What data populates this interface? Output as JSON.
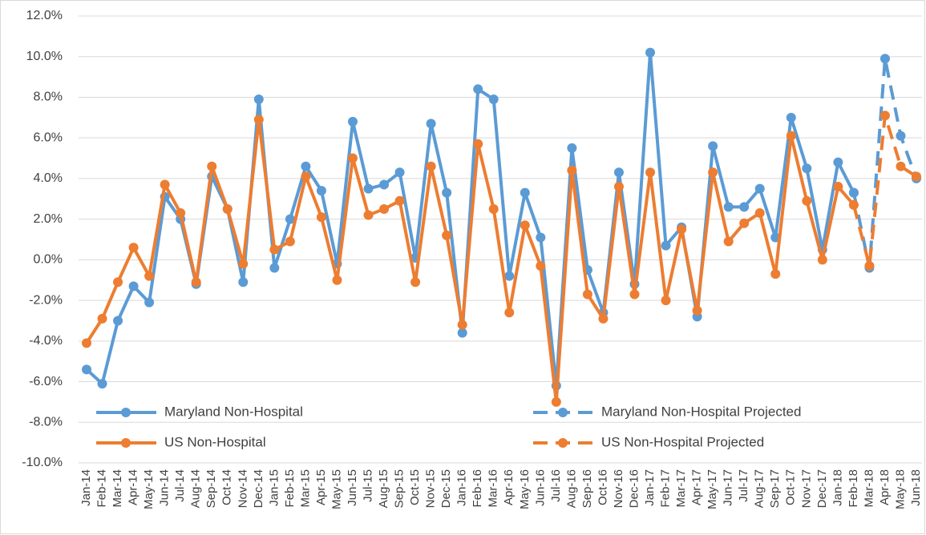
{
  "chart_data": {
    "type": "line",
    "categories": [
      "Jan-14",
      "Feb-14",
      "Mar-14",
      "Apr-14",
      "May-14",
      "Jun-14",
      "Jul-14",
      "Aug-14",
      "Sep-14",
      "Oct-14",
      "Nov-14",
      "Dec-14",
      "Jan-15",
      "Feb-15",
      "Mar-15",
      "Apr-15",
      "May-15",
      "Jun-15",
      "Jul-15",
      "Aug-15",
      "Sep-15",
      "Oct-15",
      "Nov-15",
      "Dec-15",
      "Jan-16",
      "Feb-16",
      "Mar-16",
      "Apr-16",
      "May-16",
      "Jun-16",
      "Jul-16",
      "Aug-16",
      "Sep-16",
      "Oct-16",
      "Nov-16",
      "Dec-16",
      "Jan-17",
      "Feb-17",
      "Mar-17",
      "Apr-17",
      "May-17",
      "Jun-17",
      "Jul-17",
      "Aug-17",
      "Sep-17",
      "Oct-17",
      "Nov-17",
      "Dec-17",
      "Jan-18",
      "Feb-18",
      "Mar-18",
      "Apr-18",
      "May-18",
      "Jun-18"
    ],
    "series": [
      {
        "name": "Maryland Non-Hospital",
        "color": "#5b9bd5",
        "dashed": false,
        "values": [
          -5.4,
          -6.1,
          -3.0,
          -1.3,
          -2.1,
          3.1,
          2.0,
          -1.2,
          4.1,
          2.5,
          -1.1,
          7.9,
          -0.4,
          2.0,
          4.6,
          3.4,
          -0.2,
          6.8,
          3.5,
          3.7,
          4.3,
          0.1,
          6.7,
          3.3,
          -3.6,
          8.4,
          7.9,
          -0.8,
          3.3,
          1.1,
          -6.2,
          5.5,
          -0.5,
          -2.6,
          4.3,
          -1.2,
          10.2,
          0.7,
          1.6,
          -2.8,
          5.6,
          2.6,
          2.6,
          3.5,
          1.1,
          7.0,
          4.5,
          0.5,
          4.8,
          3.3,
          null,
          null,
          null,
          null
        ]
      },
      {
        "name": "Maryland Non-Hospital Projected",
        "color": "#5b9bd5",
        "dashed": true,
        "values": [
          null,
          null,
          null,
          null,
          null,
          null,
          null,
          null,
          null,
          null,
          null,
          null,
          null,
          null,
          null,
          null,
          null,
          null,
          null,
          null,
          null,
          null,
          null,
          null,
          null,
          null,
          null,
          null,
          null,
          null,
          null,
          null,
          null,
          null,
          null,
          null,
          null,
          null,
          null,
          null,
          null,
          null,
          null,
          null,
          null,
          null,
          null,
          null,
          null,
          3.3,
          -0.4,
          9.9,
          6.1,
          4.0
        ]
      },
      {
        "name": "US Non-Hospital",
        "color": "#ed7d31",
        "dashed": false,
        "values": [
          -4.1,
          -2.9,
          -1.1,
          0.6,
          -0.8,
          3.7,
          2.3,
          -1.1,
          4.6,
          2.5,
          -0.2,
          6.9,
          0.5,
          0.9,
          4.1,
          2.1,
          -1.0,
          5.0,
          2.2,
          2.5,
          2.9,
          -1.1,
          4.6,
          1.2,
          -3.2,
          5.7,
          2.5,
          -2.6,
          1.7,
          -0.3,
          -7.0,
          4.4,
          -1.7,
          -2.9,
          3.6,
          -1.7,
          4.3,
          -2.0,
          1.5,
          -2.5,
          4.3,
          0.9,
          1.8,
          2.3,
          -0.7,
          6.1,
          2.9,
          0.0,
          3.6,
          2.7,
          null,
          null,
          null,
          null
        ]
      },
      {
        "name": "US Non-Hospital Projected",
        "color": "#ed7d31",
        "dashed": true,
        "values": [
          null,
          null,
          null,
          null,
          null,
          null,
          null,
          null,
          null,
          null,
          null,
          null,
          null,
          null,
          null,
          null,
          null,
          null,
          null,
          null,
          null,
          null,
          null,
          null,
          null,
          null,
          null,
          null,
          null,
          null,
          null,
          null,
          null,
          null,
          null,
          null,
          null,
          null,
          null,
          null,
          null,
          null,
          null,
          null,
          null,
          null,
          null,
          null,
          null,
          2.7,
          -0.3,
          7.1,
          4.6,
          4.1
        ]
      }
    ],
    "ylim": [
      -10,
      12
    ],
    "yticks": [
      {
        "value": -10,
        "label": "-10.0%"
      },
      {
        "value": -8,
        "label": "-8.0%"
      },
      {
        "value": -6,
        "label": "-6.0%"
      },
      {
        "value": -4,
        "label": "-4.0%"
      },
      {
        "value": -2,
        "label": "-2.0%"
      },
      {
        "value": 0,
        "label": "0.0%"
      },
      {
        "value": 2,
        "label": "2.0%"
      },
      {
        "value": 4,
        "label": "4.0%"
      },
      {
        "value": 6,
        "label": "6.0%"
      },
      {
        "value": 8,
        "label": "8.0%"
      },
      {
        "value": 10,
        "label": "10.0%"
      },
      {
        "value": 12,
        "label": "12.0%"
      }
    ],
    "grid": true,
    "legend": "bottom"
  }
}
